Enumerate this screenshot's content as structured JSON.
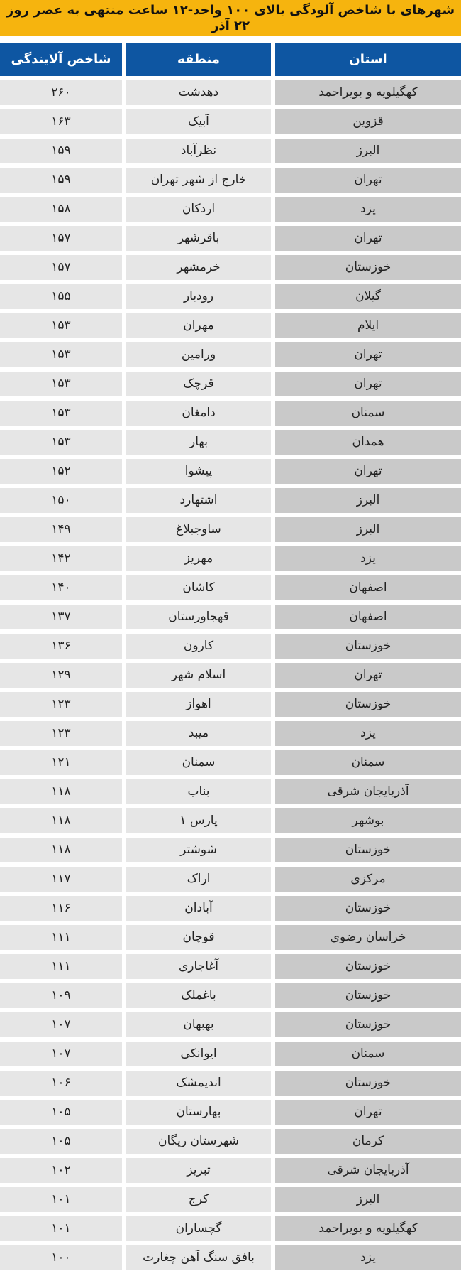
{
  "title": "شهرهای با شاخص آلودگی بالای ۱۰۰ واحد-۱۲ ساعت منتهی به عصر روز ۲۲ آذر",
  "headers": {
    "province": "استان",
    "region": "منطقه",
    "index": "شاخص آلایندگی"
  },
  "colors": {
    "title_bg": "#f6b40e",
    "header_bg": "#0e56a2",
    "cell": "#e6e6e6",
    "province_cell": "#c9c9c9"
  },
  "rows": [
    [
      "کهگیلویه و بویراحمد",
      "دهدشت",
      "۲۶۰"
    ],
    [
      "قزوین",
      "آبیک",
      "۱۶۳"
    ],
    [
      "البرز",
      "نظرآباد",
      "۱۵۹"
    ],
    [
      "تهران",
      "خارج از شهر تهران",
      "۱۵۹"
    ],
    [
      "یزد",
      "اردکان",
      "۱۵۸"
    ],
    [
      "تهران",
      "باقرشهر",
      "۱۵۷"
    ],
    [
      "خوزستان",
      "خرمشهر",
      "۱۵۷"
    ],
    [
      "گیلان",
      "رودبار",
      "۱۵۵"
    ],
    [
      "ایلام",
      "مهران",
      "۱۵۳"
    ],
    [
      "تهران",
      "ورامین",
      "۱۵۳"
    ],
    [
      "تهران",
      "قرچک",
      "۱۵۳"
    ],
    [
      "سمنان",
      "دامغان",
      "۱۵۳"
    ],
    [
      "همدان",
      "بهار",
      "۱۵۳"
    ],
    [
      "تهران",
      "پیشوا",
      "۱۵۲"
    ],
    [
      "البرز",
      "اشتهارد",
      "۱۵۰"
    ],
    [
      "البرز",
      "ساوجبلاغ",
      "۱۴۹"
    ],
    [
      "یزد",
      "مهریز",
      "۱۴۲"
    ],
    [
      "اصفهان",
      "کاشان",
      "۱۴۰"
    ],
    [
      "اصفهان",
      "قهجاورستان",
      "۱۳۷"
    ],
    [
      "خوزستان",
      "کارون",
      "۱۳۶"
    ],
    [
      "تهران",
      "اسلام شهر",
      "۱۲۹"
    ],
    [
      "خوزستان",
      "اهواز",
      "۱۲۳"
    ],
    [
      "یزد",
      "میبد",
      "۱۲۳"
    ],
    [
      "سمنان",
      "سمنان",
      "۱۲۱"
    ],
    [
      "آذربایجان شرقی",
      "بناب",
      "۱۱۸"
    ],
    [
      "بوشهر",
      "پارس ۱",
      "۱۱۸"
    ],
    [
      "خوزستان",
      "شوشتر",
      "۱۱۸"
    ],
    [
      "مرکزی",
      "اراک",
      "۱۱۷"
    ],
    [
      "خوزستان",
      "آبادان",
      "۱۱۶"
    ],
    [
      "خراسان رضوی",
      "قوچان",
      "۱۱۱"
    ],
    [
      "خوزستان",
      "آغاجاری",
      "۱۱۱"
    ],
    [
      "خوزستان",
      "باغملک",
      "۱۰۹"
    ],
    [
      "خوزستان",
      "بهبهان",
      "۱۰۷"
    ],
    [
      "سمنان",
      "ایوانکی",
      "۱۰۷"
    ],
    [
      "خوزستان",
      "اندیمشک",
      "۱۰۶"
    ],
    [
      "تهران",
      "بهارستان",
      "۱۰۵"
    ],
    [
      "کرمان",
      "شهرستان ریگان",
      "۱۰۵"
    ],
    [
      "آذربایجان شرقی",
      "تبریز",
      "۱۰۲"
    ],
    [
      "البرز",
      "کرج",
      "۱۰۱"
    ],
    [
      "کهگیلویه و بویراحمد",
      "گچساران",
      "۱۰۱"
    ],
    [
      "یزد",
      "بافق سنگ آهن چغارت",
      "۱۰۰"
    ]
  ]
}
